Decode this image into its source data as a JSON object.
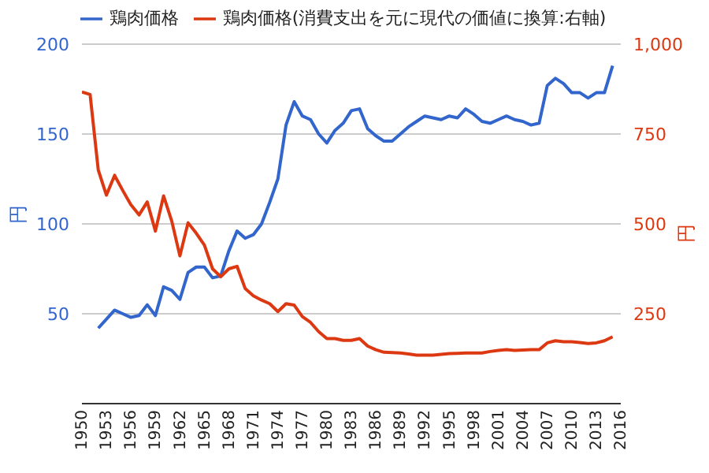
{
  "chart_data": {
    "type": "line",
    "ylabel": "円",
    "y2label": "円",
    "x": [
      1950,
      1951,
      1952,
      1953,
      1954,
      1955,
      1956,
      1957,
      1958,
      1959,
      1960,
      1961,
      1962,
      1963,
      1964,
      1965,
      1966,
      1967,
      1968,
      1969,
      1970,
      1971,
      1972,
      1973,
      1974,
      1975,
      1976,
      1977,
      1978,
      1979,
      1980,
      1981,
      1982,
      1983,
      1984,
      1985,
      1986,
      1987,
      1988,
      1989,
      1990,
      1991,
      1992,
      1993,
      1994,
      1995,
      1996,
      1997,
      1998,
      1999,
      2000,
      2001,
      2002,
      2003,
      2004,
      2005,
      2006,
      2007,
      2008,
      2009,
      2010,
      2011,
      2012,
      2013,
      2014,
      2015
    ],
    "series": [
      {
        "name": "鶏肉価格",
        "color": "#3366cc",
        "values": [
          null,
          null,
          42,
          47,
          52,
          50,
          48,
          49,
          55,
          49,
          65,
          63,
          58,
          73,
          76,
          76,
          70,
          71,
          85,
          96,
          92,
          94,
          100,
          112,
          125,
          155,
          168,
          160,
          158,
          150,
          145,
          152,
          156,
          163,
          164,
          153,
          149,
          146,
          146,
          150,
          154,
          157,
          160,
          159,
          158,
          160,
          159,
          164,
          161,
          157,
          156,
          158,
          160,
          158,
          157,
          155,
          156,
          177,
          181,
          178,
          173,
          173,
          170,
          173,
          173,
          188
        ]
      },
      {
        "name": "鶏肉価格(消費支出を元に現代の価値に換算:右軸)",
        "color": "#dc3912",
        "axis": "y2",
        "values": [
          867,
          860,
          650,
          580,
          635,
          593,
          553,
          525,
          561,
          480,
          578,
          508,
          411,
          503,
          474,
          441,
          375,
          353,
          375,
          382,
          320,
          300,
          288,
          278,
          256,
          278,
          274,
          242,
          226,
          200,
          181,
          181,
          176,
          176,
          181,
          160,
          150,
          143,
          142,
          141,
          138,
          135,
          135,
          135,
          137,
          139,
          140,
          141,
          141,
          141,
          145,
          148,
          150,
          148,
          149,
          150,
          150,
          169,
          175,
          172,
          172,
          170,
          167,
          169,
          175,
          186
        ]
      }
    ],
    "xlim": [
      1950,
      2016
    ],
    "xticks": [
      1950,
      1953,
      1956,
      1959,
      1962,
      1965,
      1968,
      1971,
      1974,
      1977,
      1980,
      1983,
      1986,
      1989,
      1992,
      1995,
      1998,
      2001,
      2004,
      2007,
      2010,
      2013,
      2016
    ],
    "ylim": [
      0,
      200
    ],
    "yticks": [
      50,
      100,
      150,
      200
    ],
    "y2lim": [
      0,
      1000
    ],
    "y2ticks": [
      250,
      500,
      750,
      {
        "value": 1000,
        "label": "1,000"
      }
    ],
    "grid": "y",
    "legend": "top",
    "marker": "none",
    "line_style": "solid"
  }
}
